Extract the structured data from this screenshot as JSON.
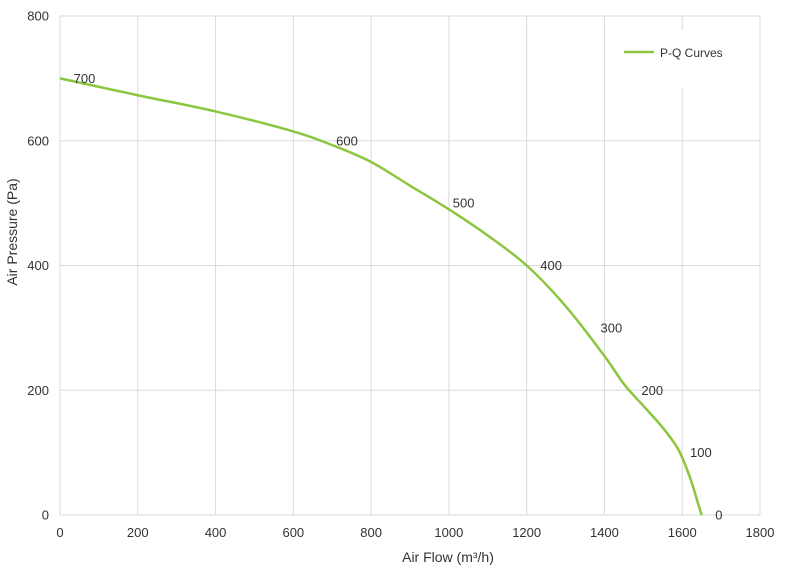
{
  "chart_data": {
    "type": "line",
    "title": "",
    "xlabel": "Air Flow  (m³/h)",
    "ylabel": "Air Pressure  (Pa)",
    "xlim": [
      0,
      1800
    ],
    "ylim": [
      0,
      800
    ],
    "xticks": [
      0,
      200,
      400,
      600,
      800,
      1000,
      1200,
      1400,
      1600,
      1800
    ],
    "yticks": [
      0,
      200,
      400,
      600,
      800
    ],
    "grid": true,
    "legend": {
      "position": "top-right",
      "entries": [
        "P-Q Curves"
      ]
    },
    "series": [
      {
        "name": "P-Q Curves",
        "color": "#8cc63f",
        "points": [
          [
            0,
            700
          ],
          [
            200,
            673
          ],
          [
            400,
            647
          ],
          [
            600,
            615
          ],
          [
            700,
            593
          ],
          [
            800,
            566
          ],
          [
            900,
            528
          ],
          [
            1000,
            490
          ],
          [
            1100,
            448
          ],
          [
            1200,
            400
          ],
          [
            1300,
            335
          ],
          [
            1400,
            255
          ],
          [
            1450,
            210
          ],
          [
            1500,
            175
          ],
          [
            1550,
            140
          ],
          [
            1590,
            105
          ],
          [
            1620,
            60
          ],
          [
            1640,
            20
          ],
          [
            1650,
            0
          ]
        ]
      }
    ],
    "annotations": [
      {
        "text": "700",
        "x": 35,
        "y": 700
      },
      {
        "text": "600",
        "x": 710,
        "y": 600
      },
      {
        "text": "500",
        "x": 1010,
        "y": 500
      },
      {
        "text": "400",
        "x": 1235,
        "y": 400
      },
      {
        "text": "300",
        "x": 1390,
        "y": 300
      },
      {
        "text": "200",
        "x": 1495,
        "y": 200
      },
      {
        "text": "100",
        "x": 1620,
        "y": 100
      },
      {
        "text": "0",
        "x": 1685,
        "y": 0
      }
    ]
  }
}
